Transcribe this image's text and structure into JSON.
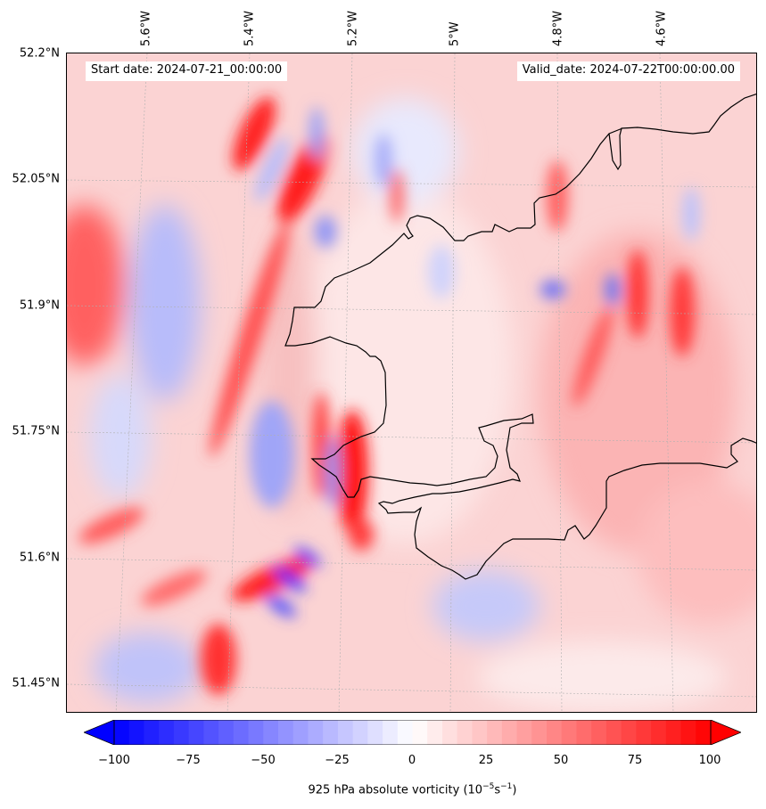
{
  "map": {
    "start_date": "Start date: 2024-07-21_00:00:00",
    "valid_date": "Valid_date: 2024-07-22T00:00:00.00",
    "lon_labels": [
      "5.6°W",
      "5.4°W",
      "5.2°W",
      "5°W",
      "4.8°W",
      "4.6°W"
    ],
    "lat_labels": [
      "52.2°N",
      "52.05°N",
      "51.9°N",
      "51.75°N",
      "51.6°N",
      "51.45°N"
    ],
    "coastline_color": "#000000",
    "gridline_color": "#b0b0b0"
  },
  "colorbar": {
    "ticks": [
      "−100",
      "−75",
      "−50",
      "−25",
      "0",
      "25",
      "50",
      "75",
      "100"
    ],
    "label_prefix": "925 hPa absolute vorticity (10",
    "label_exp1": "−5",
    "label_mid": "s",
    "label_exp2": "−1",
    "label_suffix": ")",
    "min_color": "#0000ff",
    "mid_color": "#ffffff",
    "max_color": "#ff0000"
  }
}
